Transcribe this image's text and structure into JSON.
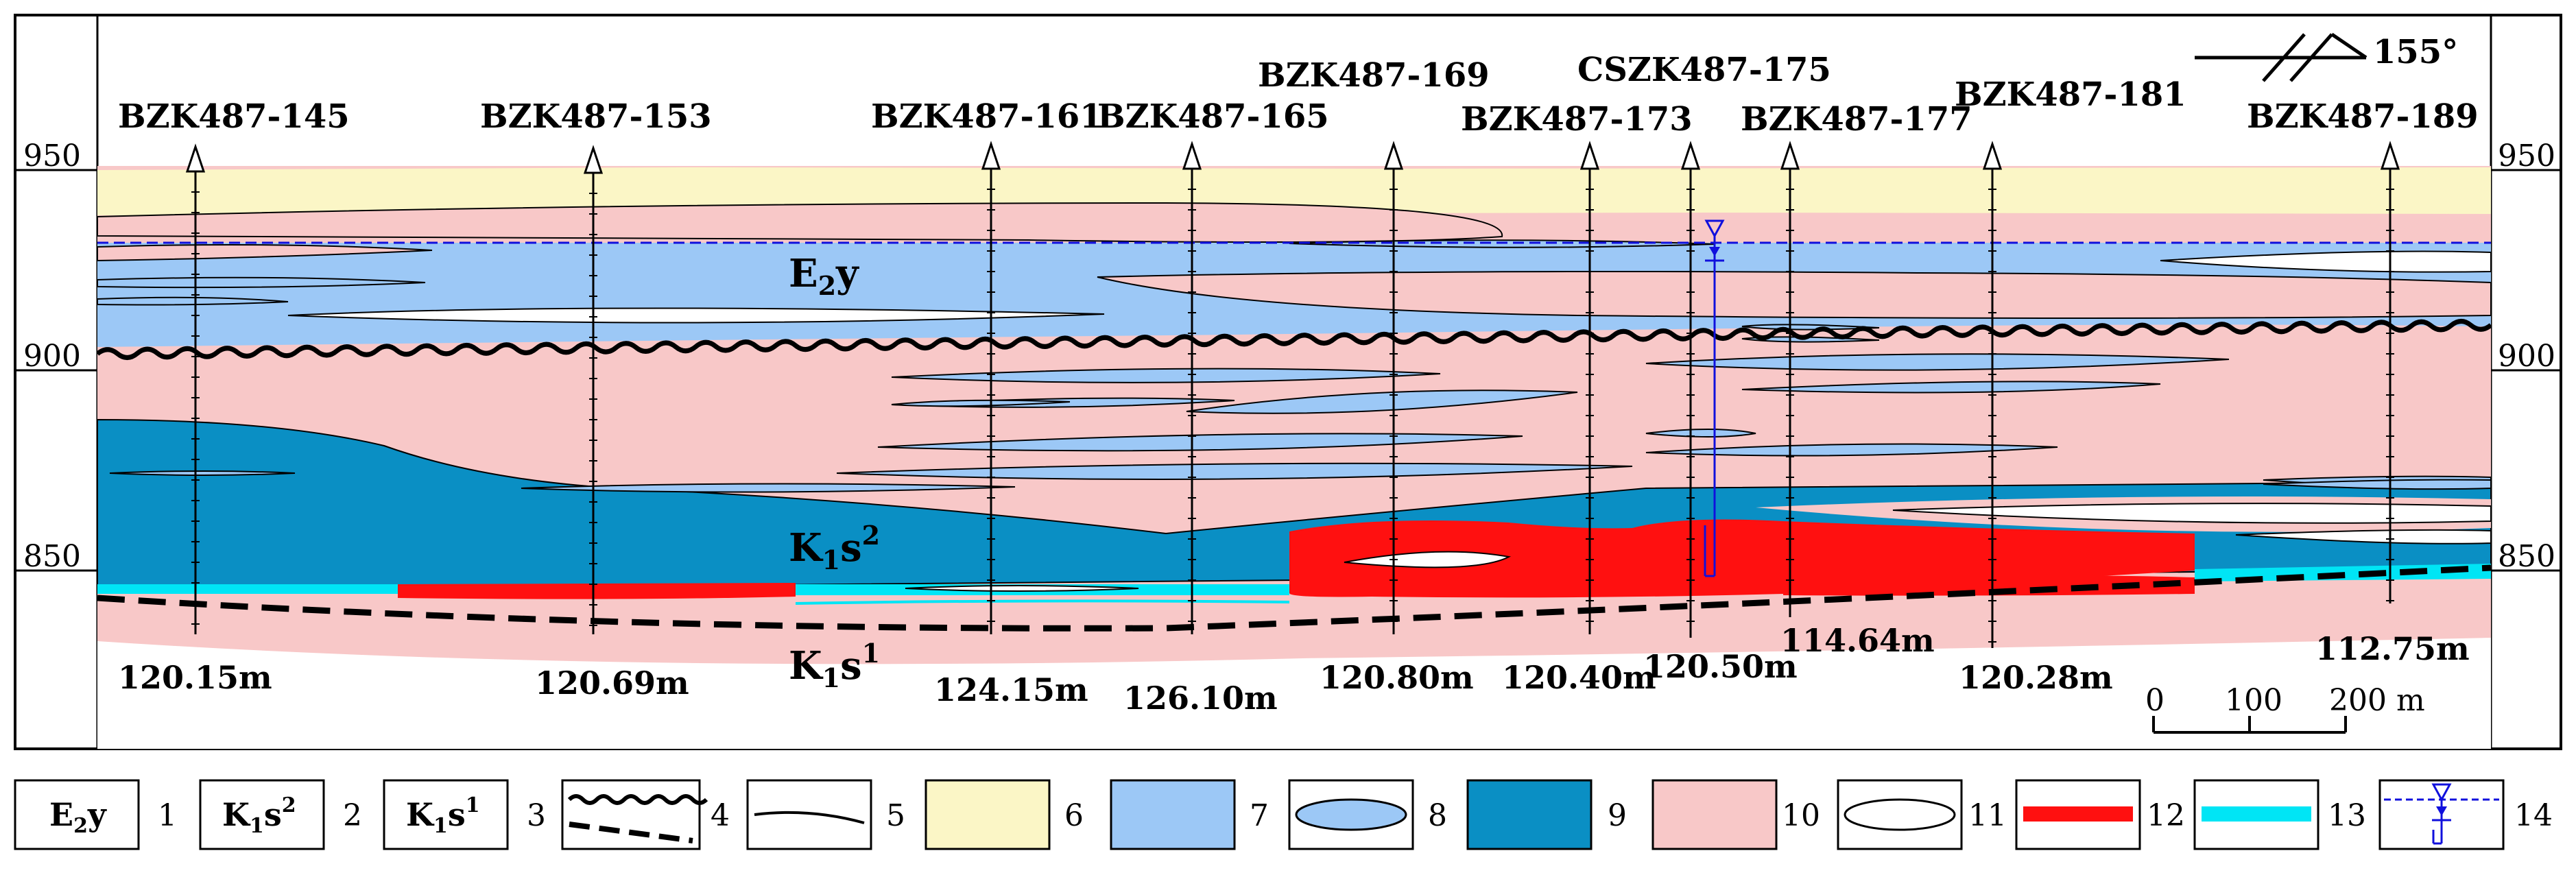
{
  "colors": {
    "unit6_cover": "#fbf6c6",
    "unit7_light_blue": "#9cc8f6",
    "unit9_dark_blue": "#0a8fc4",
    "unit10_pink": "#f8c8c8",
    "unit12_red": "#ff1010",
    "unit13_cyan": "#00e5f5",
    "water_line": "#1010dd"
  },
  "north_arrow": {
    "label": "155°"
  },
  "elevation_axis": {
    "ticks": [
      {
        "label": "950",
        "value": 950
      },
      {
        "label": "900",
        "value": 900
      },
      {
        "label": "850",
        "value": 850
      }
    ]
  },
  "boreholes": [
    {
      "name": "BZK487-145",
      "depth": "120.15m"
    },
    {
      "name": "BZK487-153",
      "depth": "120.69m"
    },
    {
      "name": "BZK487-161",
      "depth": "124.15m"
    },
    {
      "name": "BZK487-165",
      "depth": "126.10m"
    },
    {
      "name": "BZK487-169",
      "depth": "120.80m"
    },
    {
      "name": "BZK487-173",
      "depth": "120.40m"
    },
    {
      "name": "CSZK487-175",
      "depth": "120.50m"
    },
    {
      "name": "BZK487-177",
      "depth": "114.64m"
    },
    {
      "name": "BZK487-181",
      "depth": "120.28m"
    },
    {
      "name": "BZK487-189",
      "depth": "112.75m"
    }
  ],
  "strata_labels": [
    {
      "main": "E",
      "sub": "2",
      "tail": "y"
    },
    {
      "main": "K",
      "sub": "1",
      "tail": "s",
      "sup": "2"
    },
    {
      "main": "K",
      "sub": "1",
      "tail": "s",
      "sup": "1"
    }
  ],
  "scale_bar": {
    "labels": [
      "0",
      "100",
      "200 m"
    ]
  },
  "legend": [
    {
      "num": "1",
      "symbol": "E2y",
      "icon": "text-box"
    },
    {
      "num": "2",
      "symbol": "K1s2",
      "icon": "text-box"
    },
    {
      "num": "3",
      "symbol": "K1s1",
      "icon": "text-box"
    },
    {
      "num": "4",
      "icon": "unconformity-lines"
    },
    {
      "num": "5",
      "icon": "boundary-line"
    },
    {
      "num": "6",
      "icon": "yellow-fill"
    },
    {
      "num": "7",
      "icon": "light-blue-fill"
    },
    {
      "num": "8",
      "icon": "blue-lens"
    },
    {
      "num": "9",
      "icon": "dark-blue-fill"
    },
    {
      "num": "10",
      "icon": "pink-fill"
    },
    {
      "num": "11",
      "icon": "white-lens"
    },
    {
      "num": "12",
      "icon": "red-bar"
    },
    {
      "num": "13",
      "icon": "cyan-bar"
    },
    {
      "num": "14",
      "icon": "water-level-symbol"
    }
  ]
}
